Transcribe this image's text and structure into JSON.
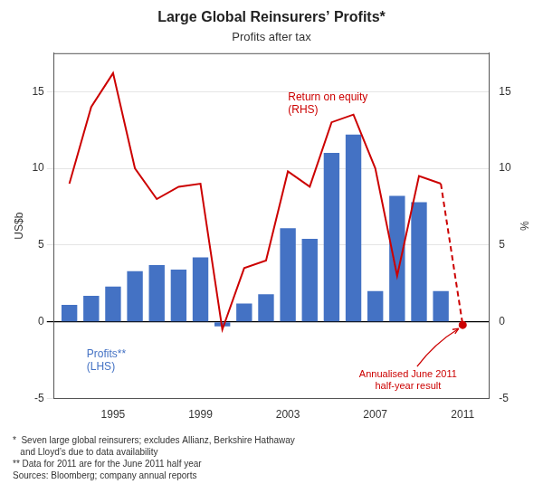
{
  "chart_data": {
    "type": "bar",
    "title": "Large Global Reinsurers’ Profits*",
    "subtitle": "Profits after tax",
    "ylabel": "US$b",
    "y2label": "%",
    "series": [
      {
        "name": "Profits**\n(LHS)",
        "type": "bar",
        "color": "#4472C4",
        "x": [
          1993,
          1994,
          1995,
          1996,
          1997,
          1998,
          1999,
          2000,
          2001,
          2002,
          2003,
          2004,
          2005,
          2006,
          2007,
          2008,
          2009,
          2010
        ],
        "values": [
          1.1,
          1.7,
          2.3,
          3.3,
          3.7,
          3.4,
          4.2,
          -0.3,
          1.2,
          1.8,
          6.1,
          5.4,
          11.0,
          12.2,
          2.0,
          8.2,
          7.8,
          2.0
        ]
      },
      {
        "name": "Return on equity\n(RHS)",
        "type": "line",
        "axis": "y2",
        "color": "#CC0000",
        "line_style": "solid",
        "x": [
          1993,
          1994,
          1995,
          1996,
          1997,
          1998,
          1999,
          2000,
          2001,
          2002,
          2003,
          2004,
          2005,
          2006,
          2007,
          2008,
          2009,
          2010
        ],
        "values": [
          9.0,
          14.0,
          16.2,
          10.0,
          8.0,
          8.8,
          9.0,
          -0.5,
          3.5,
          4.0,
          9.8,
          8.8,
          13.0,
          13.5,
          10.0,
          3.0,
          9.5,
          9.0
        ]
      },
      {
        "type": "line",
        "axis": "y2",
        "color": "#CC0000",
        "line_style": "dashed",
        "x": [
          2010,
          2011
        ],
        "values": [
          9.0,
          -0.2
        ]
      },
      {
        "type": "scatter",
        "axis": "y2",
        "color": "#CC0000",
        "marker": "circle",
        "x": [
          2011
        ],
        "values": [
          -0.2
        ]
      }
    ],
    "annotations": [
      "Annualised June 2011\nhalf-year result"
    ],
    "footnotes": [
      "*  Seven large global reinsurers; excludes Allianz, Berkshire Hathaway",
      "   and Lloyd’s due to data availability",
      "** Data for 2011 are for the June 2011 half year",
      "Sources: Bloomberg; company annual reports"
    ],
    "xlim": [
      1992.3,
      2012.2
    ],
    "xticks": [
      1995,
      1999,
      2003,
      2007,
      2011
    ],
    "ylim": [
      -5,
      17.5
    ],
    "yticks": [
      -5,
      0,
      5,
      10,
      15
    ],
    "y2lim": [
      -5,
      17.5
    ],
    "y2ticks": [
      -5,
      0,
      5,
      10,
      15
    ],
    "grid": true
  }
}
